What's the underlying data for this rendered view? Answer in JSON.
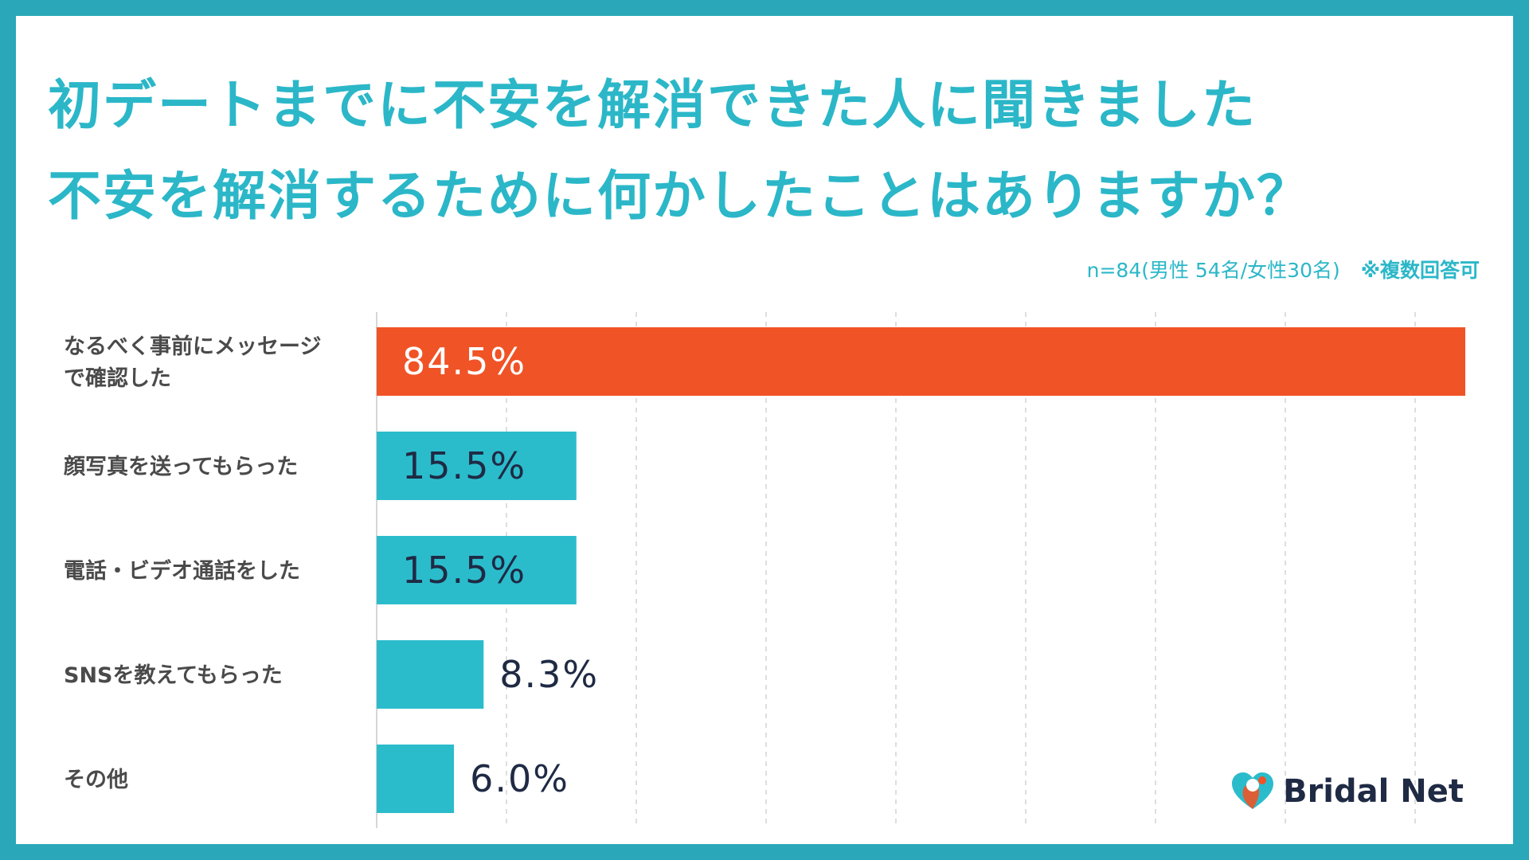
{
  "title": {
    "line1": "初デートまでに不安を解消できた人に聞きました",
    "line2": "不安を解消するために何かしたことはありますか？"
  },
  "note": {
    "sample": "n=84(男性 54名/女性30名)",
    "multiple": "※複数回答可"
  },
  "chart_data": {
    "type": "bar",
    "orientation": "horizontal",
    "categories": [
      [
        "なるべく事前にメッセージ",
        "で確認した"
      ],
      [
        "顔写真を送ってもらった"
      ],
      [
        "電話・ビデオ通話をした"
      ],
      [
        "SNSを教えてもらった"
      ],
      [
        "その他"
      ]
    ],
    "values": [
      84.5,
      15.5,
      15.5,
      8.3,
      6.0
    ],
    "value_labels": [
      "84.5%",
      "15.5%",
      "15.5%",
      "8.3%",
      "6.0%"
    ],
    "xlim": [
      0,
      84.5
    ],
    "grid": true,
    "colors": {
      "highlight": "#f05326",
      "bar": "#2bbccc",
      "label_on_highlight": "#ffffff",
      "label_dark": "#1f2a44",
      "grid": "#c8c8c8"
    }
  },
  "logo": {
    "text": "Bridal Net",
    "icon": "heart-logo-icon"
  }
}
